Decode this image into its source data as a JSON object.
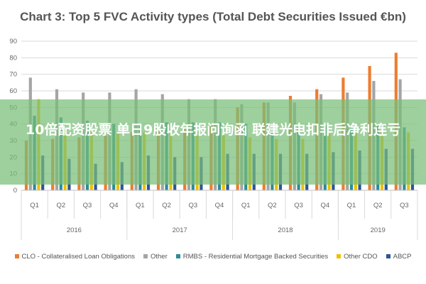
{
  "chart_data": {
    "type": "bar",
    "title": "Chart 3: Top 5 FVC Activity types (Total Debt Securities Issued €bn)",
    "categories": [
      "Q1",
      "Q2",
      "Q3",
      "Q4",
      "Q1",
      "Q2",
      "Q3",
      "Q4",
      "Q1",
      "Q2",
      "Q3",
      "Q4",
      "Q1",
      "Q2",
      "Q3"
    ],
    "years": [
      {
        "label": "2016",
        "count": 4
      },
      {
        "label": "2017",
        "count": 4
      },
      {
        "label": "2018",
        "count": 4
      },
      {
        "label": "2019",
        "count": 3
      }
    ],
    "ylim": [
      0,
      90
    ],
    "yticks": [
      0,
      10,
      20,
      30,
      40,
      50,
      60,
      70,
      80,
      90
    ],
    "grid": true,
    "legend_position": "bottom",
    "series": [
      {
        "name": "CLO - Collateralised Loan Obligations",
        "color": "#ED7D31",
        "values": [
          30,
          31,
          32,
          33,
          35,
          37,
          38,
          39,
          50,
          53,
          57,
          61,
          68,
          75,
          83
        ]
      },
      {
        "name": "Other",
        "color": "#A5A5A5",
        "values": [
          68,
          61,
          59,
          59,
          61,
          58,
          55,
          55,
          52,
          53,
          53,
          58,
          59,
          66,
          67
        ]
      },
      {
        "name": "RMBS - Residential Mortgage Backed Securities",
        "color": "#2E8B9A",
        "values": [
          45,
          44,
          42,
          40,
          40,
          41,
          41,
          41,
          40,
          39,
          39,
          39,
          39,
          39,
          38
        ]
      },
      {
        "name": "Other CDO",
        "color": "#F0C000",
        "values": [
          55,
          37,
          36,
          34,
          35,
          34,
          33,
          33,
          32,
          31,
          31,
          34,
          35,
          36,
          35
        ]
      },
      {
        "name": "ABCP",
        "color": "#2F5597",
        "values": [
          21,
          19,
          16,
          17,
          21,
          20,
          20,
          22,
          22,
          22,
          22,
          23,
          24,
          25,
          25
        ]
      }
    ]
  },
  "overlay": {
    "text": "10倍配资股票 单日9股收年报问询函 联建光电扣非后净利连亏"
  }
}
